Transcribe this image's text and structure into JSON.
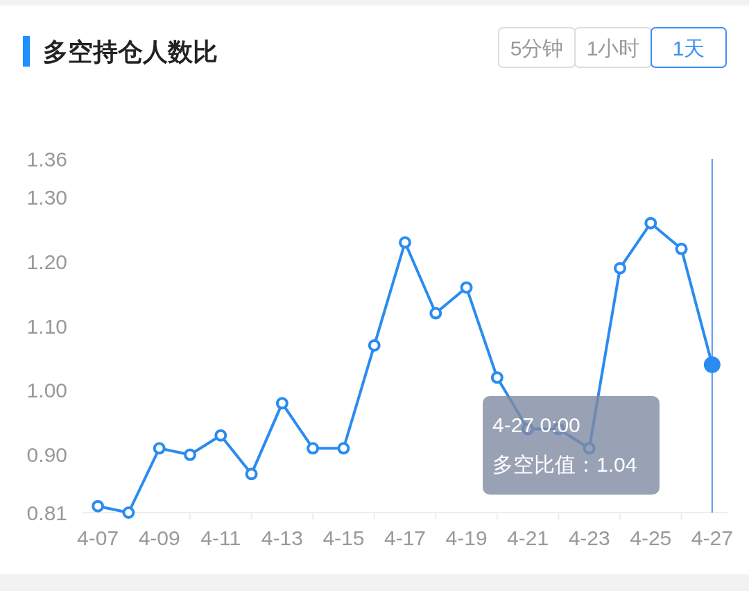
{
  "chart_data": {
    "type": "line",
    "title": "多空持仓人数比",
    "categories": [
      "4-07",
      null,
      "4-09",
      null,
      "4-11",
      null,
      "4-13",
      null,
      "4-15",
      null,
      "4-17",
      null,
      "4-19",
      null,
      "4-21",
      null,
      "4-23",
      null,
      "4-25",
      null,
      "4-27"
    ],
    "series": [
      {
        "color": "#2b8cef",
        "values": [
          0.82,
          0.81,
          0.91,
          0.9,
          0.93,
          0.87,
          0.98,
          0.91,
          0.91,
          1.07,
          1.23,
          1.12,
          1.16,
          1.02,
          0.94,
          0.94,
          0.91,
          1.19,
          1.26,
          1.22,
          1.04
        ]
      }
    ],
    "ylim": [
      0.81,
      1.36
    ],
    "yticks": [
      0.81,
      {
        "value": 0.9,
        "label": "0.90"
      },
      {
        "value": 1.0,
        "label": "1.00"
      },
      {
        "value": 1.1,
        "label": "1.10"
      },
      {
        "value": 1.2,
        "label": "1.20"
      },
      {
        "value": 1.3,
        "label": "1.30"
      },
      1.36
    ],
    "marker": "circle",
    "line_style": "solid",
    "grid": false,
    "ref_lines": [
      {
        "axis": "x",
        "value": "4-27",
        "color": "#5b8ff0"
      }
    ],
    "annotations": [
      "5分钟",
      "1小时",
      "1天",
      "4-27 0:00",
      "多空比值：1.04"
    ]
  }
}
